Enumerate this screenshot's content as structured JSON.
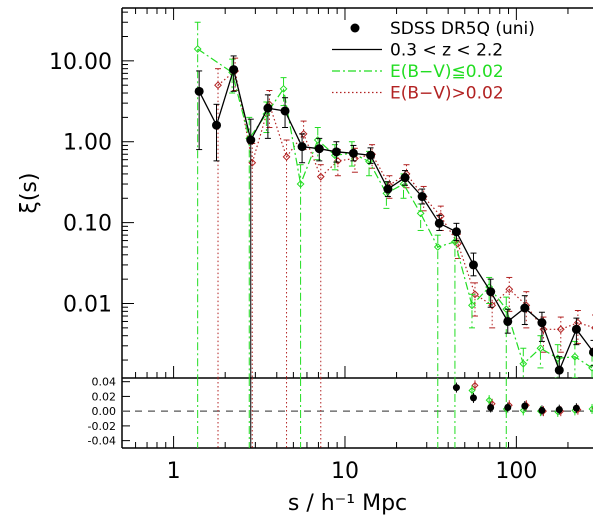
{
  "chart_data": {
    "type": "scatter",
    "xlabel": "s / h⁻¹ Mpc",
    "ylabel_top": "ξ(s)",
    "x_scale": "log",
    "xlim": [
      0.5,
      280
    ],
    "top_panel": {
      "y_scale": "log",
      "ylim": [
        0.0012,
        45
      ],
      "y_tick_labels": [
        {
          "value": 10,
          "label": "10.00"
        },
        {
          "value": 1,
          "label": "1.00"
        },
        {
          "value": 0.1,
          "label": "0.10"
        },
        {
          "value": 0.01,
          "label": "0.01"
        }
      ]
    },
    "bottom_panel": {
      "y_scale": "linear",
      "ylim": [
        -0.05,
        0.045
      ],
      "zero_line": "dashed",
      "y_tick_labels": [
        {
          "value": 0.04,
          "label": "0.04"
        },
        {
          "value": 0.02,
          "label": "0.02"
        },
        {
          "value": 0.0,
          "label": "0.00"
        },
        {
          "value": -0.02,
          "label": "-0.02"
        },
        {
          "value": -0.04,
          "label": "-0.04"
        }
      ]
    },
    "x_tick_labels": [
      {
        "value": 1,
        "label": "1"
      },
      {
        "value": 10,
        "label": "10"
      },
      {
        "value": 100,
        "label": "100"
      }
    ],
    "legend": {
      "placement": "top-right",
      "entries": [
        {
          "label": "SDSS DR5Q (uni)",
          "marker": "filled-circle",
          "color": "#000000"
        },
        {
          "label": "0.3 < z < 2.2",
          "line": "solid",
          "color": "#000000"
        },
        {
          "label": "E(B−V)≦0.02",
          "line": "dash-dot",
          "color": "#22dd22"
        },
        {
          "label": "E(B−V)>0.02",
          "line": "dotted",
          "color": "#b22222"
        }
      ]
    },
    "series": [
      {
        "key": "all",
        "color": "#000000",
        "marker": "filled-circle",
        "line": "solid",
        "x": [
          1.41,
          1.78,
          2.24,
          2.82,
          3.55,
          4.47,
          5.62,
          7.08,
          8.91,
          11.2,
          14.1,
          17.8,
          22.4,
          28.2,
          35.5,
          44.7,
          56.2,
          70.8,
          89.1,
          112,
          141,
          178,
          224,
          282
        ],
        "y": [
          4.2,
          1.6,
          7.8,
          1.05,
          2.6,
          2.4,
          0.87,
          0.82,
          0.75,
          0.72,
          0.68,
          0.26,
          0.36,
          0.21,
          0.098,
          0.077,
          0.03,
          0.014,
          0.006,
          0.0088,
          0.0058,
          0.0015,
          0.0048,
          0.0025
        ],
        "err_hi": [
          7.5,
          2.9,
          11.5,
          1.9,
          3.8,
          3.5,
          1.25,
          1.1,
          1.0,
          0.9,
          0.84,
          0.32,
          0.44,
          0.26,
          0.123,
          0.098,
          0.042,
          0.02,
          0.0085,
          0.0125,
          0.0078,
          0.0022,
          0.0066,
          0.0035
        ],
        "err_lo": [
          0.8,
          0.58,
          4.2,
          0.0,
          1.1,
          1.5,
          0.55,
          0.58,
          0.56,
          0.58,
          0.54,
          0.21,
          0.29,
          0.17,
          0.08,
          0.06,
          0.022,
          0.009,
          0.0043,
          0.0055,
          0.0034,
          0.0012,
          0.0031,
          0.0017
        ],
        "resid": [
          null,
          null,
          null,
          null,
          null,
          null,
          null,
          null,
          null,
          null,
          null,
          null,
          null,
          null,
          null,
          0.032,
          0.018,
          0.005,
          0.005,
          0.007,
          0.001,
          0.002,
          0.004,
          null
        ]
      },
      {
        "key": "lowext",
        "color": "#22dd22",
        "marker": "open-diamond",
        "line": "dash-dot",
        "x": [
          1.41,
          2.24,
          2.82,
          3.55,
          4.47,
          5.62,
          7.08,
          8.91,
          11.2,
          14.1,
          17.8,
          22.4,
          28.2,
          35.5,
          44.7,
          56.2,
          70.8,
          89.1,
          112,
          141,
          178,
          224,
          282
        ],
        "y": [
          14.0,
          7.2,
          1.1,
          2.2,
          4.5,
          0.3,
          1.05,
          0.68,
          0.72,
          0.57,
          0.23,
          0.3,
          0.13,
          0.05,
          0.058,
          0.0095,
          0.016,
          0.0085,
          0.0018,
          0.0028,
          0.0021,
          0.0022,
          0.0016
        ],
        "err_hi": [
          30.0,
          10.5,
          2.0,
          3.1,
          6.2,
          0.52,
          1.5,
          0.92,
          1.0,
          0.76,
          0.32,
          0.4,
          0.17,
          0.07,
          0.075,
          0.013,
          0.021,
          0.012,
          0.0028,
          0.004,
          0.0031,
          0.0034,
          0.0024
        ],
        "err_lo": [
          0.0,
          4.0,
          0.0,
          1.3,
          2.8,
          0.0,
          0.6,
          0.45,
          0.5,
          0.38,
          0.15,
          0.2,
          0.08,
          0.0,
          0.0,
          0.005,
          0.01,
          0.0,
          0.001,
          0.0016,
          0.0012,
          0.0012,
          0.0009
        ],
        "resid": [
          null,
          null,
          null,
          null,
          null,
          null,
          null,
          null,
          null,
          null,
          null,
          null,
          null,
          null,
          null,
          0.028,
          0.015,
          0.003,
          0.001,
          0.0,
          -0.001,
          0.001,
          0.003,
          null
        ]
      },
      {
        "key": "highext",
        "color": "#b22222",
        "marker": "open-diamond",
        "line": "dotted",
        "x": [
          1.78,
          2.24,
          2.82,
          3.55,
          4.47,
          5.62,
          7.08,
          8.91,
          11.2,
          14.1,
          17.8,
          22.4,
          28.2,
          35.5,
          44.7,
          56.2,
          70.8,
          89.1,
          112,
          141,
          178,
          224,
          282
        ],
        "y": [
          5.0,
          7.5,
          0.55,
          2.9,
          0.65,
          1.25,
          0.37,
          0.58,
          0.62,
          0.7,
          0.29,
          0.4,
          0.21,
          0.12,
          0.055,
          0.013,
          0.0095,
          0.015,
          0.0095,
          0.0048,
          0.0048,
          0.0058,
          0.005
        ],
        "err_hi": [
          8.0,
          10.8,
          0.95,
          4.3,
          1.05,
          1.8,
          0.52,
          0.8,
          0.83,
          0.92,
          0.38,
          0.52,
          0.28,
          0.16,
          0.072,
          0.018,
          0.014,
          0.021,
          0.014,
          0.0068,
          0.0068,
          0.0082,
          0.0072
        ],
        "err_lo": [
          0.0,
          4.3,
          0.0,
          1.5,
          0.0,
          0.8,
          0.0,
          0.38,
          0.42,
          0.47,
          0.2,
          0.27,
          0.14,
          0.08,
          0.036,
          0.007,
          0.005,
          0.008,
          0.005,
          0.0025,
          0.0025,
          0.0032,
          0.0028
        ],
        "resid": [
          null,
          null,
          null,
          null,
          null,
          null,
          null,
          null,
          null,
          null,
          null,
          null,
          null,
          null,
          null,
          0.035,
          0.01,
          0.008,
          0.008,
          0.0,
          0.0,
          0.002,
          0.004,
          null
        ]
      }
    ]
  }
}
